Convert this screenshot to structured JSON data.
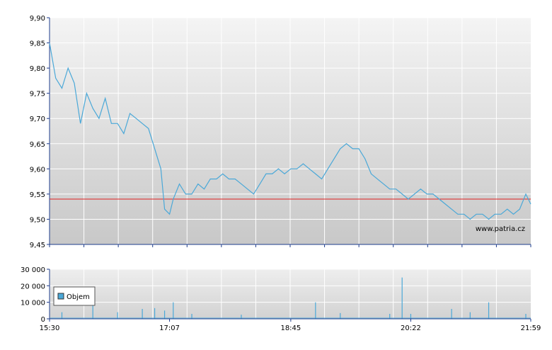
{
  "chart_data": [
    {
      "type": "line",
      "name": "price-panel",
      "ylim": [
        9.45,
        9.9
      ],
      "y_ticks": [
        "9,90",
        "9,85",
        "9,80",
        "9,75",
        "9,70",
        "9,65",
        "9,60",
        "9,55",
        "9,50",
        "9,45"
      ],
      "reference_line": {
        "value": 9.54,
        "color": "#e02020"
      },
      "watermark": "www.patria.cz",
      "series": [
        {
          "color": "#4aa8d8",
          "x": [
            "15:30",
            "15:35",
            "15:40",
            "15:45",
            "15:50",
            "15:55",
            "16:00",
            "16:05",
            "16:10",
            "16:15",
            "16:20",
            "16:25",
            "16:30",
            "16:35",
            "16:40",
            "16:45",
            "16:50",
            "16:55",
            "17:00",
            "17:03",
            "17:07",
            "17:10",
            "17:15",
            "17:20",
            "17:25",
            "17:30",
            "17:35",
            "17:40",
            "17:45",
            "17:50",
            "17:55",
            "18:00",
            "18:05",
            "18:10",
            "18:15",
            "18:20",
            "18:25",
            "18:30",
            "18:35",
            "18:40",
            "18:45",
            "18:50",
            "18:55",
            "19:00",
            "19:05",
            "19:10",
            "19:15",
            "19:20",
            "19:25",
            "19:30",
            "19:35",
            "19:40",
            "19:45",
            "19:50",
            "19:55",
            "20:00",
            "20:05",
            "20:10",
            "20:15",
            "20:20",
            "20:25",
            "20:30",
            "20:35",
            "20:40",
            "20:45",
            "20:50",
            "20:55",
            "21:00",
            "21:05",
            "21:10",
            "21:15",
            "21:20",
            "21:25",
            "21:30",
            "21:35",
            "21:40",
            "21:45",
            "21:50",
            "21:55",
            "21:59"
          ],
          "values": [
            9.85,
            9.78,
            9.76,
            9.8,
            9.77,
            9.69,
            9.75,
            9.72,
            9.7,
            9.74,
            9.69,
            9.69,
            9.67,
            9.71,
            9.7,
            9.69,
            9.68,
            9.64,
            9.6,
            9.52,
            9.51,
            9.54,
            9.57,
            9.55,
            9.55,
            9.57,
            9.56,
            9.58,
            9.58,
            9.59,
            9.58,
            9.58,
            9.57,
            9.56,
            9.55,
            9.57,
            9.59,
            9.59,
            9.6,
            9.59,
            9.6,
            9.6,
            9.61,
            9.6,
            9.59,
            9.58,
            9.6,
            9.62,
            9.64,
            9.65,
            9.64,
            9.64,
            9.62,
            9.59,
            9.58,
            9.57,
            9.56,
            9.56,
            9.55,
            9.54,
            9.55,
            9.56,
            9.55,
            9.55,
            9.54,
            9.53,
            9.52,
            9.51,
            9.51,
            9.5,
            9.51,
            9.51,
            9.5,
            9.51,
            9.51,
            9.52,
            9.51,
            9.52,
            9.55,
            9.53
          ]
        }
      ]
    },
    {
      "type": "bar",
      "name": "volume-panel",
      "ylim": [
        0,
        30000
      ],
      "y_ticks": [
        "30 000",
        "20 000",
        "10 000",
        "0"
      ],
      "x_tick_labels": [
        "15:30",
        "17:07",
        "18:45",
        "20:22",
        "21:59"
      ],
      "legend": {
        "position": "left",
        "entries": [
          "Objem"
        ]
      },
      "series": [
        {
          "name": "Objem",
          "color": "#4aa8d8",
          "spikes": [
            {
              "time": "15:40",
              "value": 4000
            },
            {
              "time": "16:05",
              "value": 10000
            },
            {
              "time": "16:25",
              "value": 4000
            },
            {
              "time": "16:45",
              "value": 6000
            },
            {
              "time": "16:55",
              "value": 6500
            },
            {
              "time": "17:03",
              "value": 5000
            },
            {
              "time": "17:10",
              "value": 10000
            },
            {
              "time": "17:25",
              "value": 3000
            },
            {
              "time": "18:05",
              "value": 2500
            },
            {
              "time": "19:05",
              "value": 10000
            },
            {
              "time": "19:25",
              "value": 3500
            },
            {
              "time": "20:05",
              "value": 3000
            },
            {
              "time": "20:15",
              "value": 25000
            },
            {
              "time": "20:22",
              "value": 3000
            },
            {
              "time": "20:55",
              "value": 6000
            },
            {
              "time": "21:10",
              "value": 4000
            },
            {
              "time": "21:25",
              "value": 10000
            },
            {
              "time": "21:55",
              "value": 3000
            }
          ],
          "baseline_value": 800
        }
      ]
    }
  ]
}
